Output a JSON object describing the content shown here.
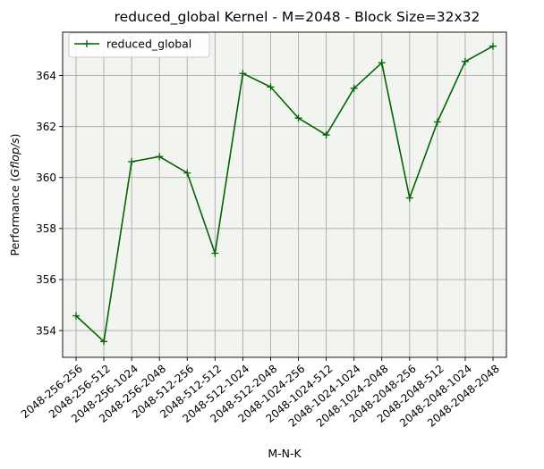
{
  "chart_data": {
    "type": "line",
    "title": "reduced_global Kernel - M=2048 - Block Size=32x32",
    "xlabel": "M-N-K",
    "ylabel_prefix": "Performance (",
    "ylabel_italic": "Gflop/s",
    "ylabel_suffix": ")",
    "categories": [
      "2048-256-256",
      "2048-256-512",
      "2048-256-1024",
      "2048-256-2048",
      "2048-512-256",
      "2048-512-512",
      "2048-512-1024",
      "2048-512-2048",
      "2048-1024-256",
      "2048-1024-512",
      "2048-1024-1024",
      "2048-1024-2048",
      "2048-2048-256",
      "2048-2048-512",
      "2048-2048-1024",
      "2048-2048-2048"
    ],
    "series": [
      {
        "name": "reduced_global",
        "color": "#006400",
        "marker": "+",
        "values": [
          354.58,
          353.57,
          360.62,
          360.82,
          360.18,
          357.03,
          364.08,
          363.55,
          362.33,
          361.67,
          363.5,
          364.5,
          359.2,
          362.18,
          364.55,
          365.15
        ]
      }
    ],
    "ylim": [
      352.95,
      365.7
    ],
    "yticks": [
      354,
      356,
      358,
      360,
      362,
      364
    ],
    "grid": true,
    "plot_background": "#f2f4f0",
    "grid_color": "#aaaaaa",
    "legend_position": "top-left"
  }
}
